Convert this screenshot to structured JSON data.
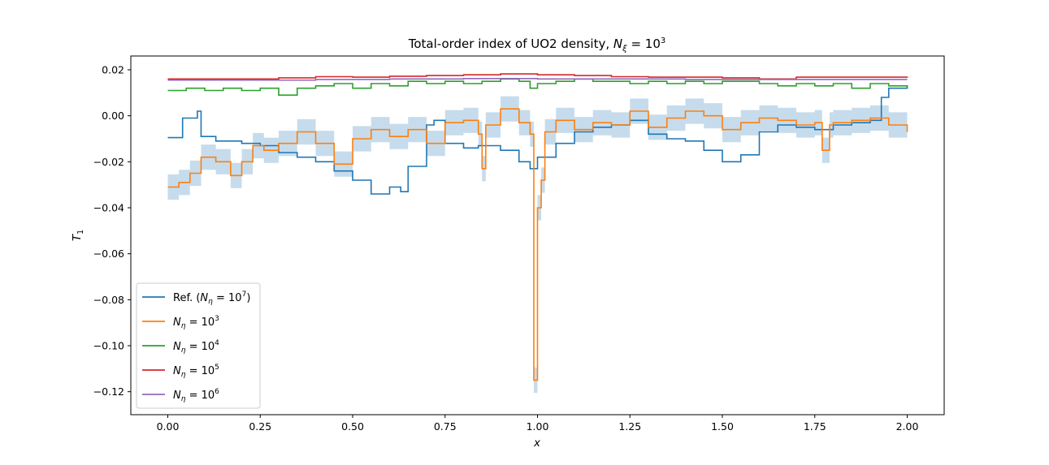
{
  "chart_data": {
    "type": "line",
    "title_text": "Total-order index of UO2 density, ",
    "title_math": "N",
    "title_sub": "ξ",
    "title_rest": " = 10",
    "title_sup": "3",
    "xlabel": "x",
    "ylabel_main": "T",
    "ylabel_sub": "1",
    "xlim": [
      -0.1,
      2.1
    ],
    "ylim": [
      -0.13,
      0.026
    ],
    "xticks": [
      0.0,
      0.25,
      0.5,
      0.75,
      1.0,
      1.25,
      1.5,
      1.75,
      2.0
    ],
    "xtick_labels": [
      "0.00",
      "0.25",
      "0.50",
      "0.75",
      "1.00",
      "1.25",
      "1.50",
      "1.75",
      "2.00"
    ],
    "yticks": [
      -0.12,
      -0.1,
      -0.08,
      -0.06,
      -0.04,
      -0.02,
      0.0,
      0.02
    ],
    "ytick_labels": [
      "−0.12",
      "−0.10",
      "−0.08",
      "−0.06",
      "−0.04",
      "−0.02",
      "0.00",
      "0.02"
    ],
    "legend_position": "lower-left",
    "band": {
      "name": "confidence band",
      "color": "#c6dcec",
      "half_width": 0.0055
    },
    "series": [
      {
        "legend_main": "Ref. (",
        "legend_math": "N",
        "legend_sub": "η",
        "legend_rest": " = 10",
        "legend_sup": "7",
        "legend_close": ")",
        "color": "#1f77b4",
        "x": [
          0.0,
          0.04,
          0.08,
          0.09,
          0.13,
          0.2,
          0.25,
          0.3,
          0.35,
          0.4,
          0.45,
          0.5,
          0.55,
          0.6,
          0.63,
          0.65,
          0.7,
          0.72,
          0.75,
          0.8,
          0.84,
          0.9,
          0.95,
          0.98,
          1.0,
          1.05,
          1.1,
          1.15,
          1.2,
          1.25,
          1.3,
          1.35,
          1.4,
          1.45,
          1.5,
          1.55,
          1.6,
          1.65,
          1.7,
          1.75,
          1.8,
          1.85,
          1.9,
          1.93,
          1.95,
          2.0
        ],
        "y": [
          -0.0095,
          -0.001,
          0.002,
          -0.009,
          -0.011,
          -0.012,
          -0.013,
          -0.016,
          -0.018,
          -0.02,
          -0.024,
          -0.028,
          -0.034,
          -0.031,
          -0.033,
          -0.022,
          -0.004,
          -0.002,
          -0.012,
          -0.014,
          -0.013,
          -0.015,
          -0.02,
          -0.023,
          -0.018,
          -0.012,
          -0.007,
          -0.005,
          -0.004,
          -0.002,
          -0.008,
          -0.01,
          -0.011,
          -0.015,
          -0.02,
          -0.017,
          -0.007,
          -0.004,
          -0.005,
          -0.006,
          -0.004,
          -0.003,
          -0.002,
          0.008,
          0.012,
          0.013
        ]
      },
      {
        "legend_main": "",
        "legend_math": "N",
        "legend_sub": "η",
        "legend_rest": " = 10",
        "legend_sup": "3",
        "legend_close": "",
        "color": "#ff7f0e",
        "x": [
          0.0,
          0.03,
          0.06,
          0.09,
          0.13,
          0.17,
          0.2,
          0.23,
          0.26,
          0.3,
          0.35,
          0.4,
          0.45,
          0.5,
          0.55,
          0.6,
          0.65,
          0.7,
          0.75,
          0.8,
          0.84,
          0.85,
          0.86,
          0.9,
          0.95,
          0.98,
          0.99,
          1.0,
          1.01,
          1.02,
          1.05,
          1.1,
          1.15,
          1.2,
          1.25,
          1.3,
          1.35,
          1.4,
          1.45,
          1.5,
          1.55,
          1.6,
          1.65,
          1.7,
          1.75,
          1.77,
          1.79,
          1.8,
          1.85,
          1.9,
          1.95,
          2.0
        ],
        "y": [
          -0.031,
          -0.029,
          -0.025,
          -0.018,
          -0.02,
          -0.026,
          -0.02,
          -0.013,
          -0.015,
          -0.012,
          -0.007,
          -0.012,
          -0.021,
          -0.01,
          -0.006,
          -0.009,
          -0.006,
          -0.012,
          -0.003,
          -0.002,
          -0.008,
          -0.023,
          -0.004,
          0.003,
          -0.003,
          -0.008,
          -0.115,
          -0.04,
          -0.028,
          -0.007,
          -0.002,
          -0.006,
          -0.003,
          -0.004,
          0.002,
          -0.005,
          -0.001,
          0.002,
          0.0,
          -0.006,
          -0.003,
          -0.001,
          -0.002,
          -0.004,
          -0.003,
          -0.015,
          -0.004,
          -0.003,
          -0.002,
          -0.001,
          -0.004,
          -0.007
        ]
      },
      {
        "legend_main": "",
        "legend_math": "N",
        "legend_sub": "η",
        "legend_rest": " = 10",
        "legend_sup": "4",
        "legend_close": "",
        "color": "#2ca02c",
        "x": [
          0.0,
          0.05,
          0.1,
          0.15,
          0.2,
          0.25,
          0.3,
          0.35,
          0.4,
          0.45,
          0.5,
          0.55,
          0.6,
          0.65,
          0.7,
          0.75,
          0.8,
          0.85,
          0.9,
          0.95,
          0.98,
          1.0,
          1.05,
          1.1,
          1.15,
          1.2,
          1.25,
          1.3,
          1.35,
          1.4,
          1.45,
          1.5,
          1.55,
          1.6,
          1.65,
          1.7,
          1.75,
          1.8,
          1.85,
          1.9,
          1.95,
          2.0
        ],
        "y": [
          0.011,
          0.012,
          0.011,
          0.012,
          0.011,
          0.012,
          0.009,
          0.012,
          0.013,
          0.014,
          0.012,
          0.014,
          0.013,
          0.015,
          0.014,
          0.015,
          0.014,
          0.015,
          0.016,
          0.015,
          0.012,
          0.014,
          0.015,
          0.016,
          0.015,
          0.015,
          0.014,
          0.015,
          0.014,
          0.015,
          0.014,
          0.015,
          0.015,
          0.014,
          0.013,
          0.014,
          0.013,
          0.014,
          0.012,
          0.014,
          0.013,
          0.012
        ]
      },
      {
        "legend_main": "",
        "legend_math": "N",
        "legend_sub": "η",
        "legend_rest": " = 10",
        "legend_sup": "5",
        "legend_close": "",
        "color": "#d62728",
        "x": [
          0.0,
          0.1,
          0.2,
          0.3,
          0.4,
          0.5,
          0.6,
          0.7,
          0.8,
          0.9,
          1.0,
          1.1,
          1.2,
          1.3,
          1.4,
          1.5,
          1.6,
          1.7,
          1.8,
          1.9,
          2.0
        ],
        "y": [
          0.016,
          0.016,
          0.016,
          0.0165,
          0.017,
          0.0168,
          0.0172,
          0.0175,
          0.0178,
          0.0182,
          0.0178,
          0.0175,
          0.017,
          0.0168,
          0.0168,
          0.0165,
          0.016,
          0.0168,
          0.0168,
          0.0168,
          0.0165
        ]
      },
      {
        "legend_main": "",
        "legend_math": "N",
        "legend_sub": "η",
        "legend_rest": " = 10",
        "legend_sup": "6",
        "legend_close": "",
        "color": "#9467bd",
        "x": [
          0.0,
          0.2,
          0.4,
          0.6,
          0.8,
          1.0,
          1.2,
          1.4,
          1.6,
          1.8,
          2.0
        ],
        "y": [
          0.0155,
          0.0155,
          0.0158,
          0.016,
          0.0162,
          0.016,
          0.016,
          0.0158,
          0.0158,
          0.0158,
          0.0158
        ]
      }
    ]
  }
}
